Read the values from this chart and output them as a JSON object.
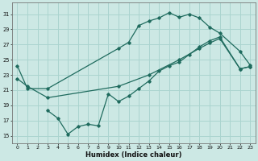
{
  "xlabel": "Humidex (Indice chaleur)",
  "color": "#1f6b5e",
  "bg_color": "#cce8e4",
  "grid_color": "#aad4cf",
  "xlim": [
    -0.5,
    23.5
  ],
  "ylim": [
    14.0,
    32.5
  ],
  "yticks": [
    15,
    17,
    19,
    21,
    23,
    25,
    27,
    29,
    31
  ],
  "xticks": [
    0,
    1,
    2,
    3,
    4,
    5,
    6,
    7,
    8,
    9,
    10,
    11,
    12,
    13,
    14,
    15,
    16,
    17,
    18,
    19,
    20,
    21,
    22,
    23
  ],
  "line1_x": [
    0,
    1,
    3,
    10,
    11,
    12,
    13,
    14,
    15,
    16,
    17,
    18,
    19,
    20,
    22,
    23
  ],
  "line1_y": [
    24.2,
    21.2,
    21.2,
    26.5,
    27.3,
    29.5,
    30.1,
    30.5,
    31.2,
    30.6,
    31.0,
    30.5,
    29.3,
    28.5,
    26.1,
    24.3
  ],
  "line2_x": [
    0,
    1,
    3,
    10,
    13,
    16,
    18,
    19,
    20,
    22,
    23
  ],
  "line2_y": [
    22.5,
    21.5,
    20.0,
    21.5,
    23.0,
    25.0,
    26.5,
    27.2,
    27.8,
    23.8,
    24.1
  ],
  "line3_x": [
    3,
    4,
    5,
    6,
    7,
    8,
    9,
    10,
    11,
    12,
    13,
    14,
    15,
    16,
    17,
    18,
    19,
    20,
    22,
    23
  ],
  "line3_y": [
    18.3,
    17.3,
    15.2,
    16.2,
    16.5,
    16.3,
    20.5,
    19.5,
    20.2,
    21.2,
    22.2,
    23.5,
    24.2,
    24.7,
    25.7,
    26.7,
    27.5,
    28.0,
    23.8,
    24.1
  ]
}
